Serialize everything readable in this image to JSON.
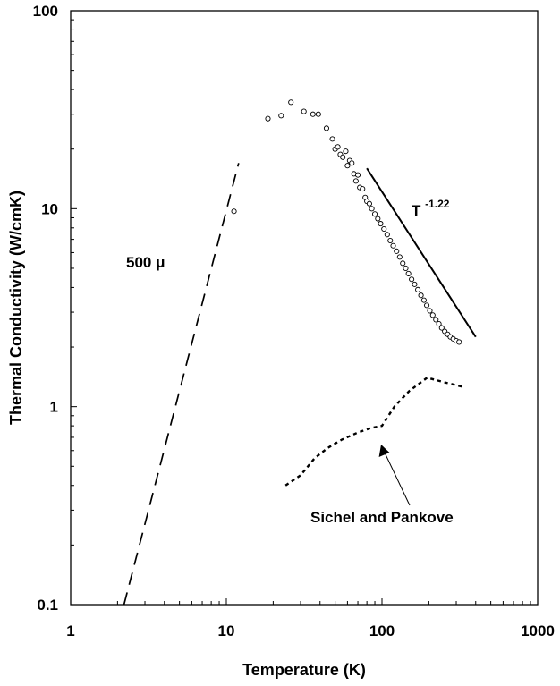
{
  "chart_data": {
    "type": "scatter",
    "title": "",
    "xlabel": "Temperature (K)",
    "ylabel": "Thermal Conductivity (W/cmK)",
    "xscale": "log",
    "yscale": "log",
    "xlim": [
      1,
      1000
    ],
    "ylim": [
      0.1,
      100
    ],
    "grid": false,
    "legend": "none",
    "x_ticks": [
      "1",
      "10",
      "100",
      "1000"
    ],
    "y_ticks": [
      "0.1",
      "1",
      "10",
      "100"
    ],
    "series": [
      {
        "style": "markers-open-circle",
        "color": "#000000",
        "points": [
          [
            11.2,
            9.7
          ],
          [
            18.5,
            28.5
          ],
          [
            22.5,
            29.5
          ],
          [
            26.0,
            34.5
          ],
          [
            31.5,
            31.0
          ],
          [
            36.0,
            30.0
          ],
          [
            39.0,
            30.0
          ],
          [
            44.0,
            25.5
          ],
          [
            48.0,
            22.5
          ],
          [
            50.0,
            20.0
          ],
          [
            52.0,
            20.5
          ],
          [
            54.0,
            18.8
          ],
          [
            56.0,
            18.2
          ],
          [
            58.5,
            19.5
          ],
          [
            60.0,
            16.5
          ],
          [
            62.0,
            17.5
          ],
          [
            64.0,
            17.0
          ],
          [
            66.0,
            15.0
          ],
          [
            68.0,
            13.8
          ],
          [
            70.0,
            14.8
          ],
          [
            72.0,
            12.8
          ],
          [
            75.0,
            12.6
          ],
          [
            78.0,
            11.4
          ],
          [
            80.0,
            10.9
          ],
          [
            83.0,
            10.6
          ],
          [
            86.0,
            10.0
          ],
          [
            90.0,
            9.4
          ],
          [
            94.0,
            8.9
          ],
          [
            98.0,
            8.4
          ],
          [
            103.0,
            7.9
          ],
          [
            108.0,
            7.4
          ],
          [
            113.0,
            6.9
          ],
          [
            118.0,
            6.5
          ],
          [
            124.0,
            6.1
          ],
          [
            130.0,
            5.7
          ],
          [
            136.0,
            5.3
          ],
          [
            142.0,
            5.0
          ],
          [
            148.0,
            4.7
          ],
          [
            155.0,
            4.4
          ],
          [
            162.0,
            4.15
          ],
          [
            170.0,
            3.9
          ],
          [
            178.0,
            3.65
          ],
          [
            186.0,
            3.45
          ],
          [
            194.0,
            3.25
          ],
          [
            203.0,
            3.05
          ],
          [
            212.0,
            2.9
          ],
          [
            222.0,
            2.75
          ],
          [
            232.0,
            2.62
          ],
          [
            242.0,
            2.5
          ],
          [
            253.0,
            2.4
          ],
          [
            264.0,
            2.32
          ],
          [
            275.0,
            2.25
          ],
          [
            287.0,
            2.2
          ],
          [
            300.0,
            2.15
          ],
          [
            313.0,
            2.12
          ]
        ]
      },
      {
        "style": "line-dashed-long",
        "color": "#000000",
        "points": [
          [
            2.2,
            0.1
          ],
          [
            12.0,
            17.0
          ]
        ]
      },
      {
        "style": "line-dotted",
        "color": "#000000",
        "points": [
          [
            24,
            0.4
          ],
          [
            30,
            0.45
          ],
          [
            37,
            0.55
          ],
          [
            45,
            0.62
          ],
          [
            55,
            0.68
          ],
          [
            70,
            0.74
          ],
          [
            85,
            0.78
          ],
          [
            100,
            0.8
          ],
          [
            120,
            1.0
          ],
          [
            150,
            1.2
          ],
          [
            195,
            1.4
          ],
          [
            250,
            1.33
          ],
          [
            330,
            1.26
          ]
        ]
      },
      {
        "style": "line-solid",
        "color": "#000000",
        "points": [
          [
            80,
            16.0
          ],
          [
            400,
            2.25
          ]
        ]
      }
    ],
    "annotations": [
      {
        "text": "500 μ"
      },
      {
        "text": "T",
        "superscript": "-1.22"
      },
      {
        "text": "Sichel and Pankove"
      }
    ]
  }
}
